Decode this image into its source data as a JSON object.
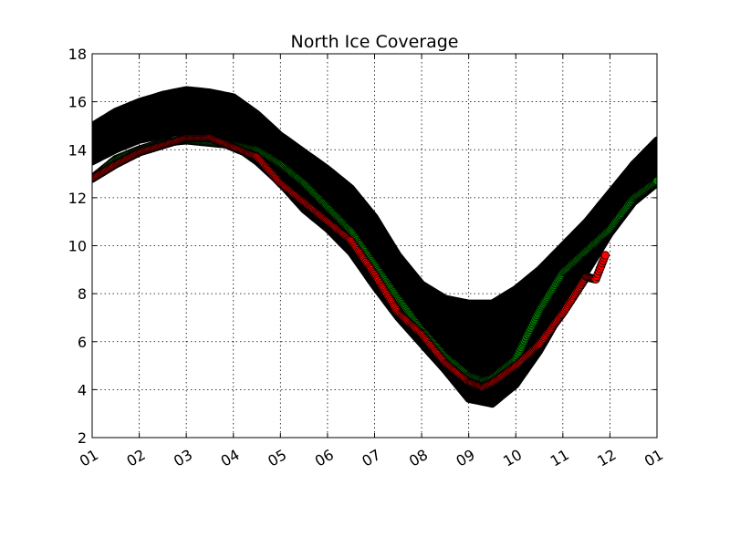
{
  "chart_data": {
    "type": "scatter",
    "title": "North Ice Coverage",
    "xlabel": "",
    "ylabel": "",
    "x_tick_labels": [
      "01",
      "02",
      "03",
      "04",
      "05",
      "06",
      "07",
      "08",
      "09",
      "10",
      "11",
      "12",
      "01"
    ],
    "y_ticks": [
      2,
      4,
      6,
      8,
      10,
      12,
      14,
      16,
      18
    ],
    "xlim": [
      1,
      13
    ],
    "ylim": [
      2,
      18
    ],
    "grid": true,
    "series": [
      {
        "color": "#000000",
        "kind": "band",
        "x": [
          1.0,
          1.5,
          2.0,
          2.5,
          3.0,
          3.5,
          4.0,
          4.5,
          5.0,
          5.5,
          6.0,
          6.5,
          7.0,
          7.5,
          8.0,
          8.5,
          9.0,
          9.5,
          10.0,
          10.5,
          11.0,
          11.5,
          12.0,
          12.5,
          13.0
        ],
        "upper": [
          15.0,
          15.6,
          16.0,
          16.3,
          16.5,
          16.4,
          16.2,
          15.5,
          14.6,
          13.9,
          13.2,
          12.4,
          11.2,
          9.6,
          8.4,
          7.8,
          7.6,
          7.6,
          8.2,
          9.0,
          10.0,
          11.0,
          12.2,
          13.4,
          14.4
        ],
        "lower": [
          13.5,
          14.0,
          14.4,
          14.6,
          14.8,
          14.7,
          14.2,
          13.5,
          12.6,
          11.5,
          10.7,
          9.7,
          8.3,
          7.0,
          5.9,
          4.8,
          3.6,
          3.4,
          4.2,
          5.6,
          7.3,
          8.9,
          10.5,
          11.8,
          12.6
        ]
      },
      {
        "color": "#008000",
        "x": [
          1.0,
          1.5,
          2.0,
          2.5,
          3.0,
          3.5,
          4.0,
          4.5,
          5.0,
          5.5,
          6.0,
          6.5,
          7.0,
          7.5,
          8.0,
          8.5,
          9.0,
          9.3,
          9.5,
          10.0,
          10.5,
          11.0,
          11.5,
          12.0,
          12.5,
          13.0
        ],
        "y": [
          12.8,
          13.6,
          14.0,
          14.3,
          14.4,
          14.3,
          14.2,
          14.0,
          13.4,
          12.6,
          11.6,
          10.6,
          9.2,
          7.8,
          6.5,
          5.4,
          4.6,
          4.4,
          4.5,
          5.3,
          7.3,
          8.9,
          9.8,
          10.7,
          12.0,
          12.7
        ]
      },
      {
        "color": "#ff0000",
        "x": [
          1.0,
          1.5,
          2.0,
          2.5,
          3.0,
          3.5,
          4.0,
          4.5,
          5.0,
          5.5,
          6.0,
          6.5,
          7.0,
          7.5,
          8.0,
          8.5,
          9.0,
          9.3,
          9.5,
          10.0,
          10.5,
          11.0,
          11.5,
          11.7,
          11.9
        ],
        "y": [
          12.8,
          13.4,
          13.9,
          14.2,
          14.5,
          14.5,
          14.1,
          13.7,
          12.6,
          11.8,
          11.0,
          10.2,
          8.8,
          7.2,
          6.3,
          5.1,
          4.3,
          4.1,
          4.3,
          5.0,
          5.9,
          7.2,
          8.7,
          8.6,
          9.6
        ]
      }
    ]
  }
}
